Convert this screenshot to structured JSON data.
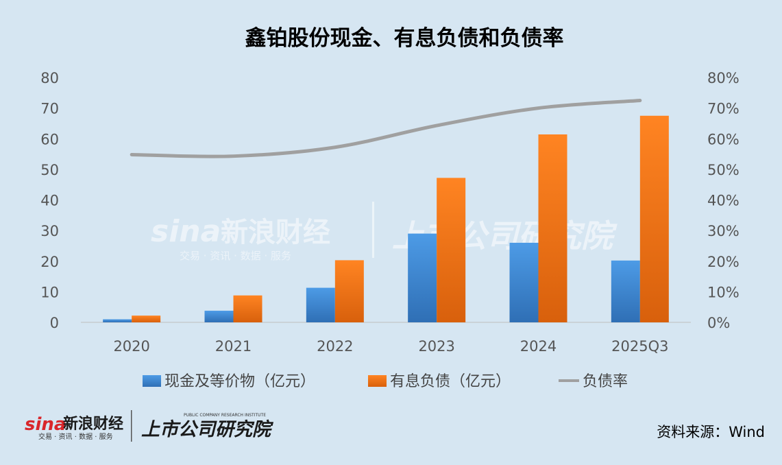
{
  "chart_data": {
    "type": "bar",
    "title": "鑫铂股份现金、有息负债和负债率",
    "categories": [
      "2020",
      "2021",
      "2022",
      "2023",
      "2024",
      "2025Q3"
    ],
    "series": [
      {
        "name": "现金及等价物（亿元）",
        "type": "bar",
        "axis": "left",
        "color": "#3a86d2",
        "values": [
          1.0,
          3.8,
          11.3,
          29.0,
          26.0,
          20.2
        ]
      },
      {
        "name": "有息负债（亿元）",
        "type": "bar",
        "axis": "left",
        "color": "#f07a1a",
        "values": [
          2.2,
          8.8,
          20.3,
          47.2,
          61.4,
          67.5
        ]
      },
      {
        "name": "负债率",
        "type": "line",
        "axis": "right",
        "color": "#a0a0a0",
        "values": [
          0.548,
          0.543,
          0.572,
          0.643,
          0.7,
          0.725
        ]
      }
    ],
    "y_left": {
      "min": 0,
      "max": 80,
      "ticks": [
        "0",
        "10",
        "20",
        "30",
        "40",
        "50",
        "60",
        "70",
        "80"
      ]
    },
    "y_right": {
      "min": 0,
      "max": 0.8,
      "ticks": [
        "0%",
        "10%",
        "20%",
        "30%",
        "40%",
        "50%",
        "60%",
        "70%",
        "80%"
      ]
    },
    "legend_position": "bottom",
    "grid": false
  },
  "source_text": "资料来源：Wind",
  "watermark": {
    "sina_text": "sina",
    "brand_text": "新浪财经",
    "sub_text": "交易 · 资讯 · 数据 · 服务",
    "institute_text": "上市公司研究院",
    "institute_en": "PUBLIC COMPANY RESEARCH INSTITUTE"
  }
}
